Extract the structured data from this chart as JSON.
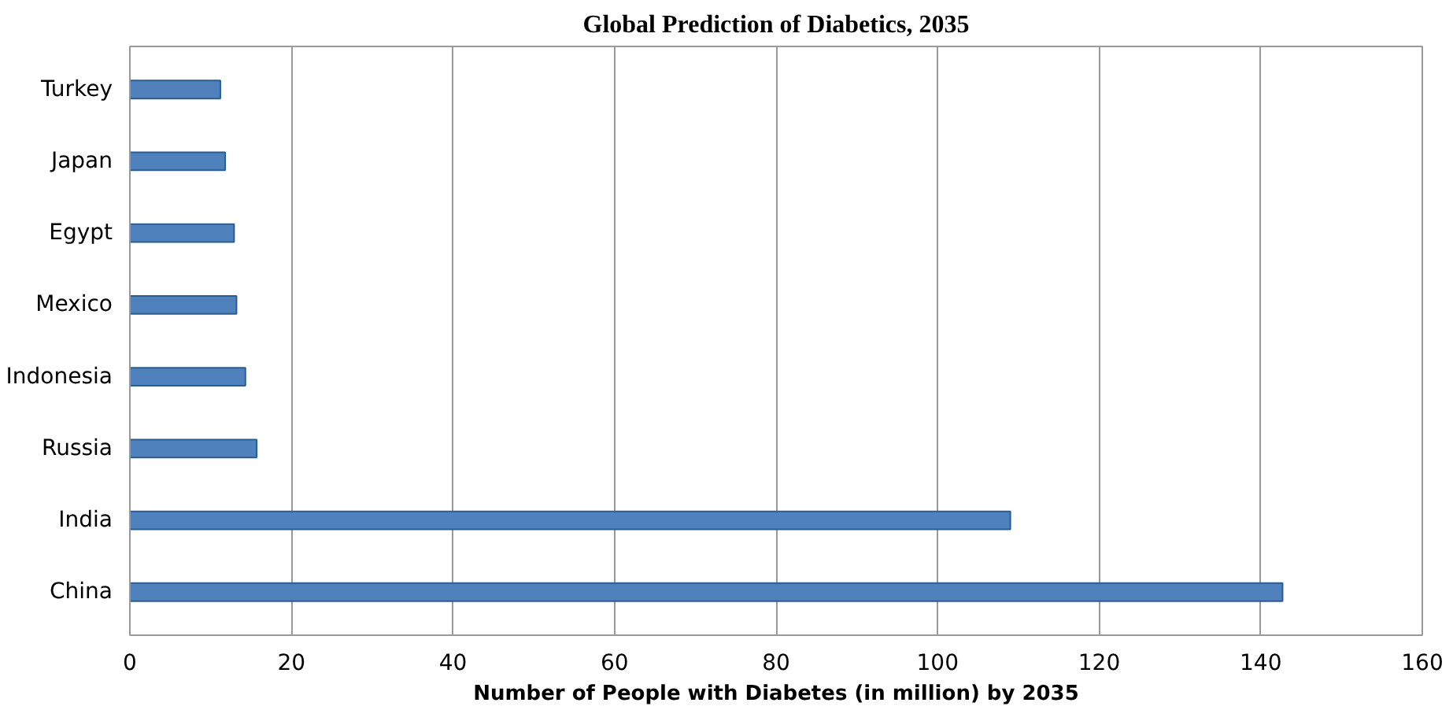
{
  "chart_data": {
    "type": "bar",
    "orientation": "horizontal",
    "title": "Global Prediction of Diabetics, 2035",
    "xlabel": "Number of People with Diabetes (in million) by 2035",
    "categories": [
      "Turkey",
      "Japan",
      "Egypt",
      "Mexico",
      "Indonesia",
      "Russia",
      "India",
      "China"
    ],
    "values": [
      11.2,
      11.8,
      12.9,
      13.2,
      14.3,
      15.7,
      109.0,
      142.7
    ],
    "color": "#4f81bd",
    "xlim": [
      0,
      160
    ],
    "xticks": [
      0,
      20,
      40,
      60,
      80,
      100,
      120,
      140,
      160
    ],
    "grid": "x"
  }
}
